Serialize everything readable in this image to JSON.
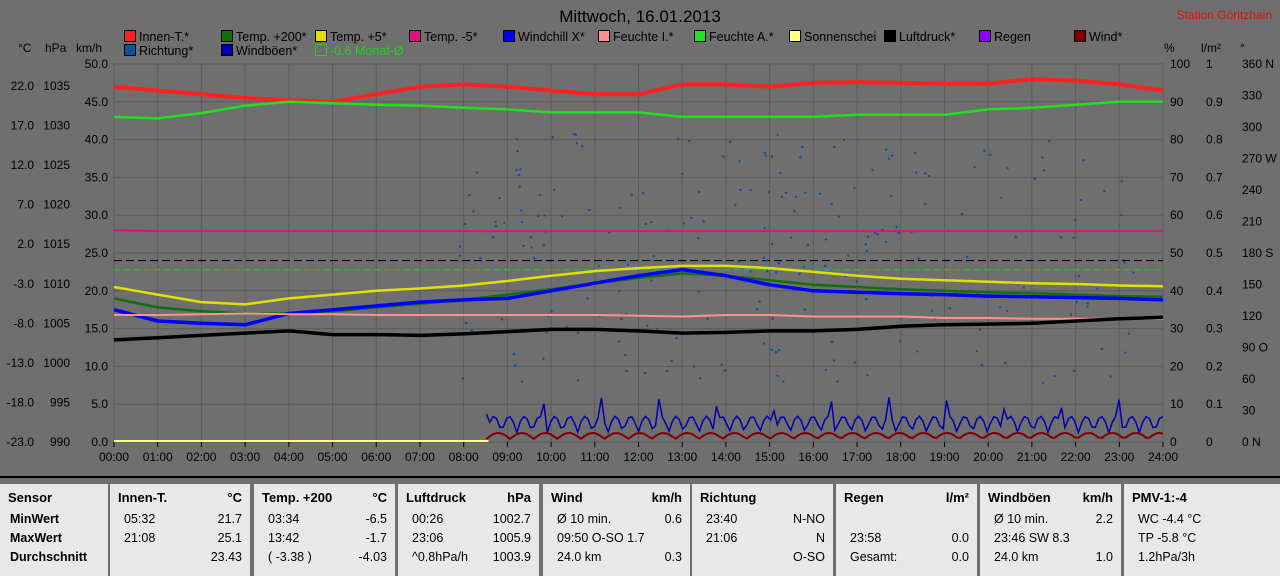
{
  "title": "Mittwoch, 16.01.2013",
  "station": "Station Göritzhain",
  "legend": [
    {
      "label": "Innen-T.*",
      "color": "#ff2020"
    },
    {
      "label": "Temp. +200*",
      "color": "#107010"
    },
    {
      "label": "Temp. +5*",
      "color": "#e0e000"
    },
    {
      "label": "Temp. -5*",
      "color": "#e01080"
    },
    {
      "label": "Windchill X*",
      "color": "#0000ff"
    },
    {
      "label": "Feuchte I.*",
      "color": "#ff9090"
    },
    {
      "label": "Feuchte A.*",
      "color": "#20e020"
    },
    {
      "label": "Sonnenschei",
      "color": "#ffff80"
    },
    {
      "label": "Luftdruck*",
      "color": "#000000"
    },
    {
      "label": "Regen",
      "color": "#9000ff"
    },
    {
      "label": "Wind*",
      "color": "#800000"
    },
    {
      "label": "Richtung*",
      "color": "#1050a0"
    },
    {
      "label": "Windböen*",
      "color": "#0000b0"
    },
    {
      "label": "-0.6 Monat-Ø",
      "color": "#20d020"
    }
  ],
  "units": {
    "c": "°C",
    "hpa": "hPa",
    "kmh": "km/h",
    "pct": "%",
    "lm2": "l/m²",
    "deg": "°"
  },
  "chart_data": {
    "type": "line",
    "x": [
      "00:00",
      "01:00",
      "02:00",
      "03:00",
      "04:00",
      "05:00",
      "06:00",
      "07:00",
      "08:00",
      "09:00",
      "10:00",
      "11:00",
      "12:00",
      "13:00",
      "14:00",
      "15:00",
      "16:00",
      "17:00",
      "18:00",
      "19:00",
      "20:00",
      "21:00",
      "22:00",
      "23:00",
      "24:00"
    ],
    "axes": {
      "temp_c": {
        "ticks": [
          "22.0",
          "17.0",
          "12.0",
          "7.0",
          "2.0",
          "-3.0",
          "-8.0",
          "-13.0",
          "-18.0",
          "-23.0"
        ]
      },
      "pressure_hpa": {
        "ticks": [
          "1035",
          "1030",
          "1025",
          "1020",
          "1015",
          "1010",
          "1005",
          "1000",
          "995",
          "990"
        ]
      },
      "wind_kmh": {
        "ticks": [
          "50.0",
          "45.0",
          "40.0",
          "35.0",
          "30.0",
          "25.0",
          "20.0",
          "15.0",
          "10.0",
          "5.0",
          "0.0"
        ],
        "ylim": [
          0,
          50
        ]
      },
      "humidity_pct": {
        "ticks": [
          "100",
          "90",
          "80",
          "70",
          "60",
          "50",
          "40",
          "30",
          "20",
          "10",
          "0"
        ],
        "ylim": [
          0,
          100
        ]
      },
      "rain_lm2": {
        "ticks": [
          "1",
          "0.9",
          "0.8",
          "0.7",
          "0.6",
          "0.5",
          "0.4",
          "0.3",
          "0.2",
          "0.1",
          "0"
        ],
        "ylim": [
          0,
          1
        ]
      },
      "direction_deg": {
        "ticks": [
          "360 N",
          "330",
          "300",
          "270 W",
          "240",
          "210",
          "180 S",
          "150",
          "120",
          "90 O",
          "60",
          "30",
          "0 N"
        ],
        "ylim": [
          0,
          360
        ]
      }
    },
    "series": [
      {
        "name": "Innen-T.*",
        "color": "#ff2020",
        "width": 4,
        "values": [
          47,
          46.5,
          46,
          45.5,
          45.2,
          45,
          46,
          47,
          47.3,
          47,
          46.5,
          46,
          46,
          47.3,
          47.3,
          47,
          47.5,
          47.6,
          47.5,
          47.4,
          47.4,
          48,
          47.8,
          47.3,
          46.5
        ]
      },
      {
        "name": "Feuchte A.*",
        "color": "#20e020",
        "width": 2.5,
        "values": [
          43,
          42.8,
          43.5,
          44.5,
          45,
          44.8,
          44.6,
          44.5,
          44.2,
          44,
          43.6,
          43.6,
          43.6,
          43,
          43,
          43,
          43,
          43.3,
          43.3,
          43.3,
          44,
          44.2,
          44.6,
          45,
          45
        ]
      },
      {
        "name": "Temp. -5*",
        "color": "#e01080",
        "width": 2,
        "values": [
          28,
          27.9,
          27.9,
          27.9,
          27.9,
          27.9,
          27.9,
          27.9,
          27.9,
          27.9,
          27.9,
          27.9,
          27.9,
          27.9,
          27.9,
          27.9,
          27.9,
          27.9,
          27.9,
          27.9,
          27.9,
          27.9,
          27.9,
          27.9,
          27.9
        ]
      },
      {
        "name": "Temp. +5*",
        "color": "#e0e000",
        "width": 2.5,
        "values": [
          20.5,
          19.5,
          18.5,
          18.2,
          19,
          19.5,
          20,
          20.3,
          20.7,
          21.3,
          22,
          22.6,
          23,
          23.3,
          23.3,
          23,
          22.5,
          22,
          21.6,
          21.4,
          21.2,
          21,
          20.9,
          20.7,
          20.6
        ]
      },
      {
        "name": "Temp. +200*",
        "color": "#107010",
        "width": 2.5,
        "values": [
          19,
          17.8,
          17.3,
          17,
          17,
          17.3,
          17.8,
          18.3,
          18.8,
          19.5,
          20.2,
          21,
          21.7,
          22.3,
          22,
          21.4,
          20.8,
          20.5,
          20.2,
          20,
          19.8,
          19.7,
          19.5,
          19.3,
          19.2
        ]
      },
      {
        "name": "Windchill X*",
        "color": "#0000ff",
        "width": 3.5,
        "values": [
          17.5,
          16,
          15.7,
          15.5,
          17,
          17.5,
          18,
          18.5,
          18.8,
          19,
          20,
          21,
          22,
          22.8,
          22,
          20.8,
          20,
          19.8,
          19.6,
          19.5,
          19.3,
          19.2,
          19.1,
          19,
          18.8
        ]
      },
      {
        "name": "Feuchte I.*",
        "color": "#ff9090",
        "width": 2,
        "values": [
          16.8,
          16.8,
          16.9,
          17,
          16.9,
          16.9,
          16.8,
          16.8,
          16.8,
          16.8,
          16.8,
          16.8,
          16.7,
          16.6,
          16.8,
          16.8,
          16.6,
          16.6,
          16.6,
          16.4,
          16.4,
          16.3,
          16.3,
          16.3,
          16.3
        ]
      },
      {
        "name": "Luftdruck*",
        "color": "#000000",
        "width": 3.5,
        "values": [
          13.5,
          13.8,
          14.1,
          14.4,
          14.7,
          14.2,
          14.2,
          14.1,
          14.3,
          14.6,
          14.9,
          14.9,
          14.7,
          14.4,
          14.5,
          14.7,
          14.7,
          14.9,
          15.3,
          15.5,
          15.6,
          15.7,
          16,
          16.3,
          16.5
        ]
      }
    ],
    "reference_lines": [
      {
        "name": "Temp. 0",
        "value": 24.0,
        "color": "#000000",
        "dash": "8,4"
      },
      {
        "name": "-0.6 Monat-Ø",
        "value": 22.8,
        "color": "#20c020",
        "dash": "6,4"
      }
    ]
  },
  "table": [
    {
      "header": "Sensor",
      "unit": "",
      "rows": [
        [
          "MinWert",
          ""
        ],
        [
          "MaxWert",
          ""
        ],
        [
          "Durchschnitt",
          ""
        ]
      ]
    },
    {
      "header": "Innen-T.",
      "unit": "°C",
      "rows": [
        [
          "05:32",
          "21.7"
        ],
        [
          "21:08",
          "25.1"
        ],
        [
          "",
          "23.43"
        ]
      ]
    },
    {
      "header": "Temp. +200",
      "unit": "°C",
      "rows": [
        [
          "03:34",
          "-6.5"
        ],
        [
          "13:42",
          "-1.7"
        ],
        [
          "( -3.38 )",
          "-4.03"
        ]
      ]
    },
    {
      "header": "Luftdruck",
      "unit": "hPa",
      "rows": [
        [
          "00:26",
          "1002.7"
        ],
        [
          "23:06",
          "1005.9"
        ],
        [
          "^0.8hPa/h",
          "1003.9"
        ]
      ]
    },
    {
      "header": "Wind",
      "unit": "km/h",
      "rows": [
        [
          "Ø 10 min.",
          "0.6"
        ],
        [
          "09:50  O-SO 1.7",
          ""
        ],
        [
          "24.0 km",
          "0.3"
        ]
      ]
    },
    {
      "header": "Richtung",
      "unit": "",
      "rows": [
        [
          "23:40",
          "N-NO"
        ],
        [
          "21:06",
          "N"
        ],
        [
          "",
          "O-SO"
        ]
      ]
    },
    {
      "header": "Regen",
      "unit": "l/m²",
      "rows": [
        [
          "",
          ""
        ],
        [
          "23:58",
          "0.0"
        ],
        [
          "Gesamt:",
          "0.0"
        ]
      ]
    },
    {
      "header": "Windböen",
      "unit": "km/h",
      "rows": [
        [
          "Ø 10 min.",
          "2.2"
        ],
        [
          "23:46  SW 8.3",
          ""
        ],
        [
          "24.0 km",
          "1.0"
        ]
      ]
    },
    {
      "header": "PMV-1:-4",
      "unit": "",
      "rows": [
        [
          "WC -4.4 °C",
          ""
        ],
        [
          "TP -5.8 °C",
          ""
        ],
        [
          "1.2hPa/3h",
          ""
        ]
      ]
    }
  ]
}
